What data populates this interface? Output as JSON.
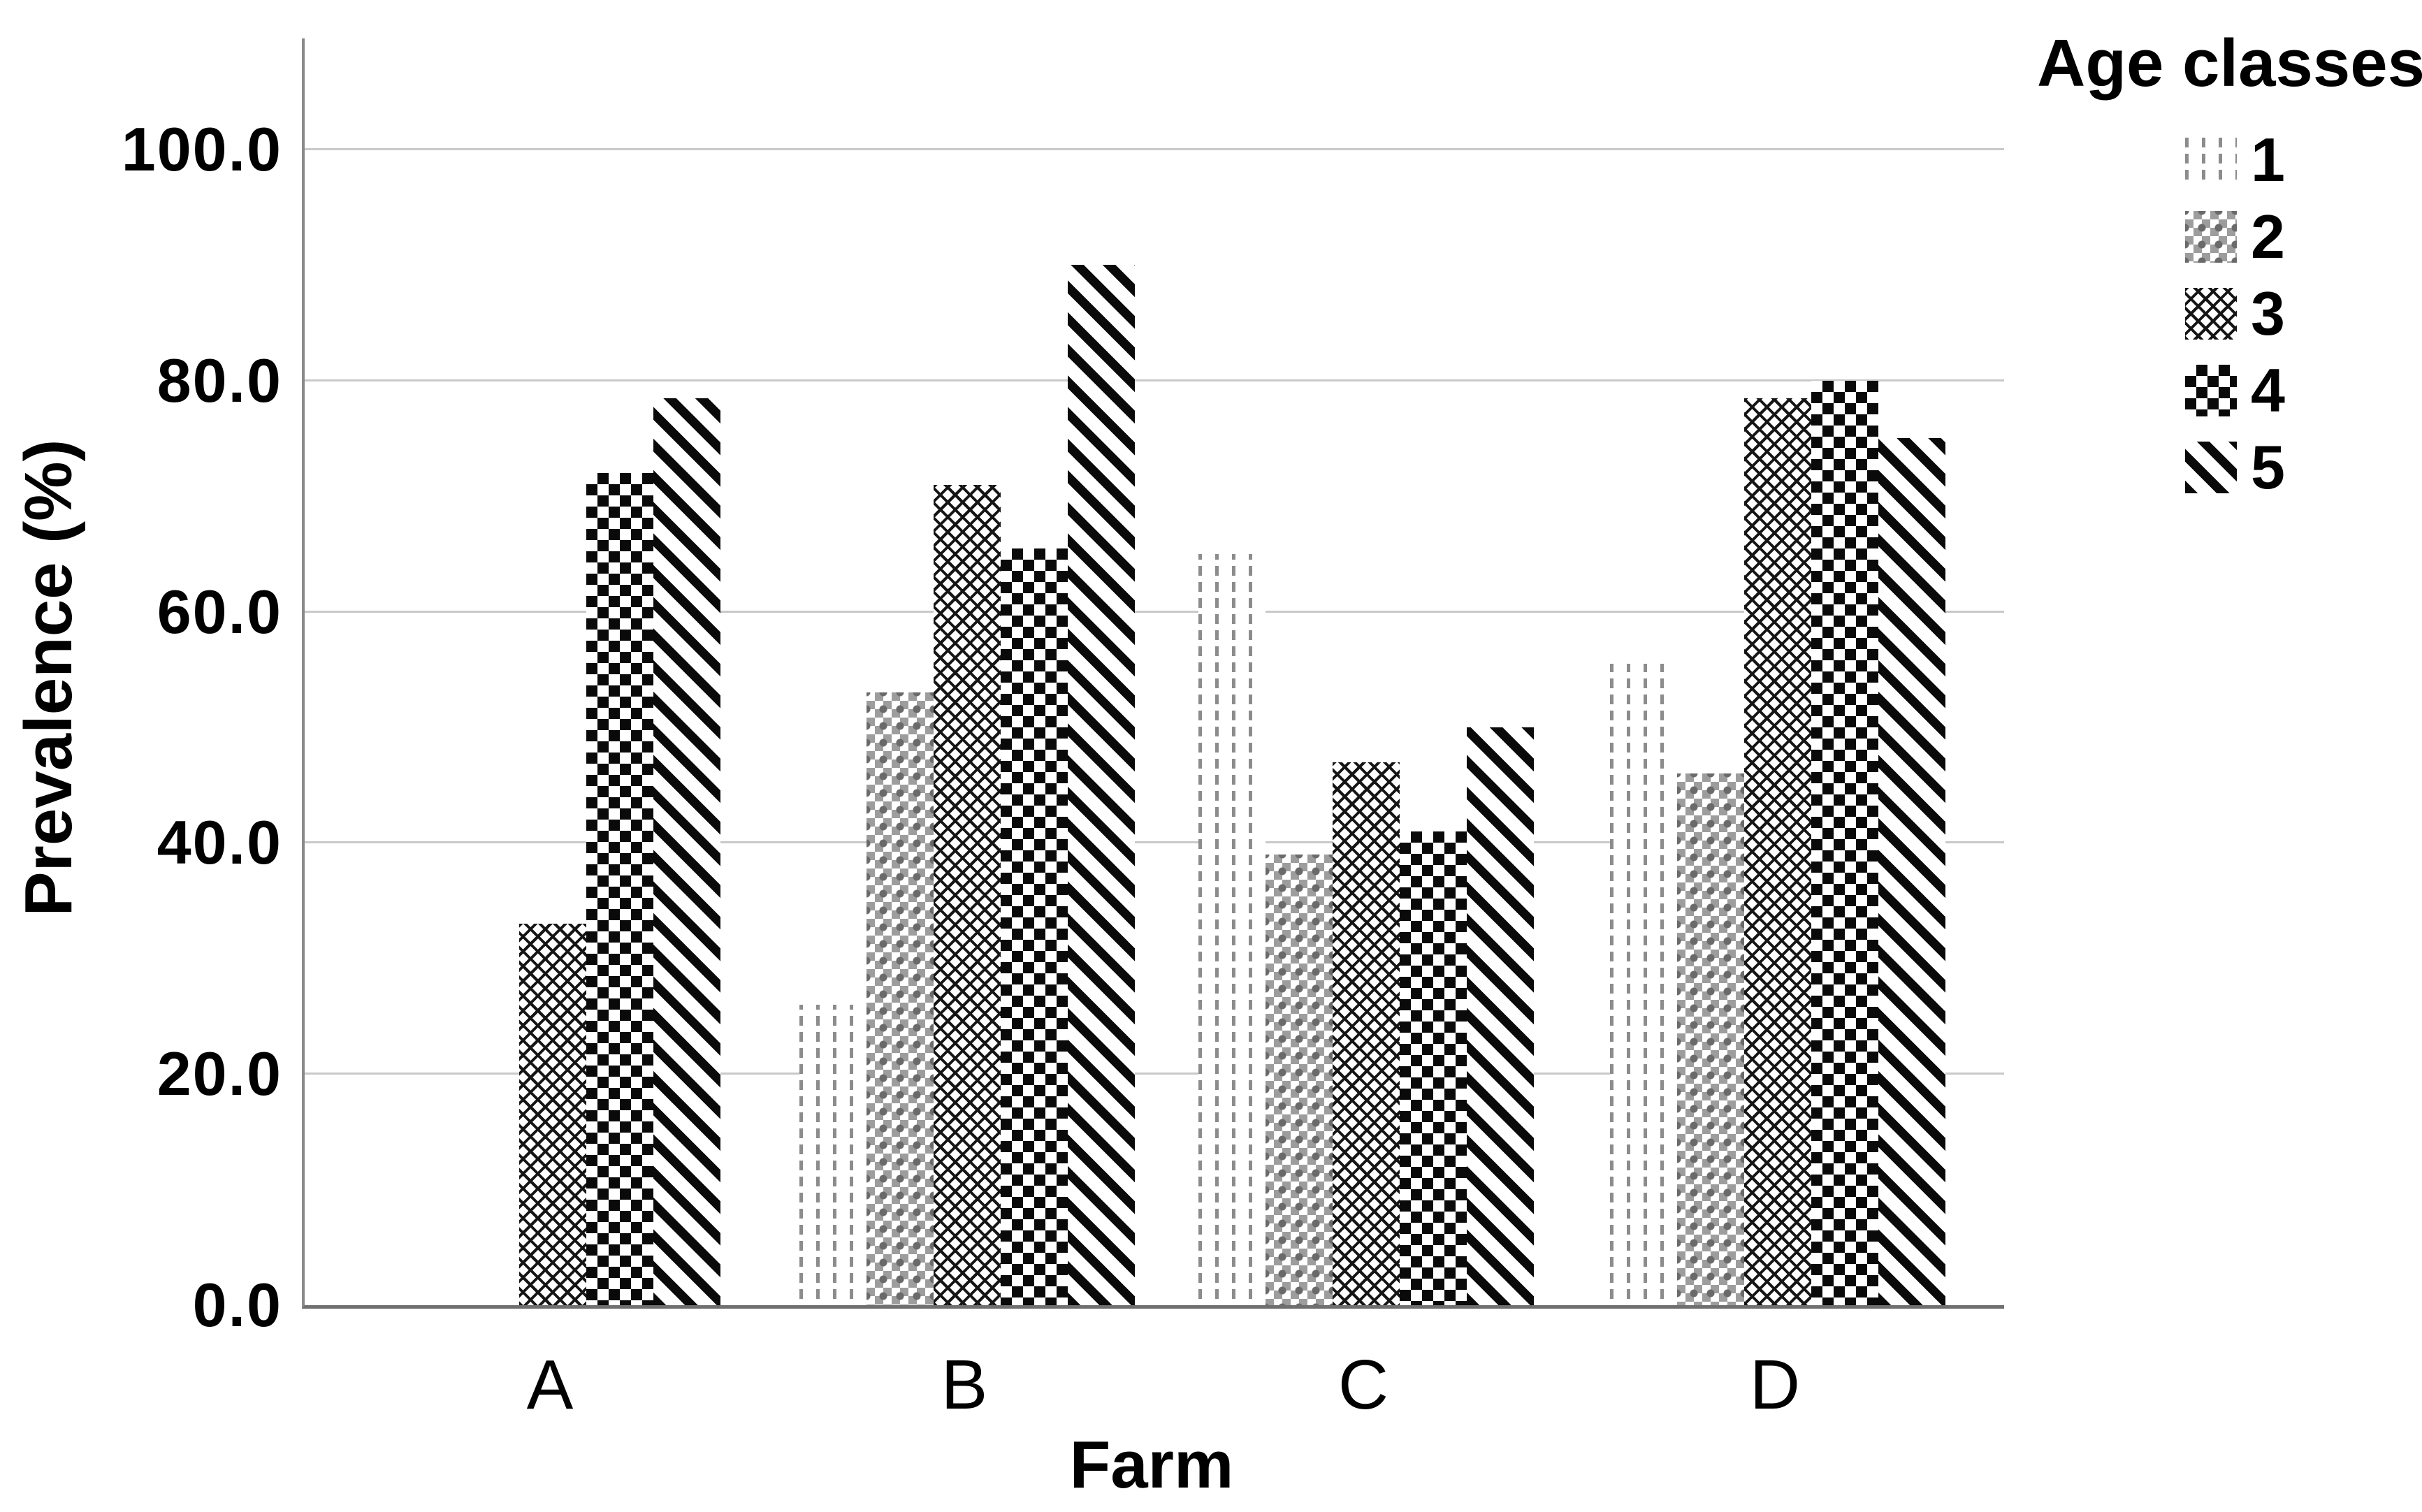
{
  "chart_data": {
    "type": "bar",
    "title": "",
    "xlabel": "Farm",
    "ylabel": "Prevalence (%)",
    "categories": [
      "A",
      "B",
      "C",
      "D"
    ],
    "series": [
      {
        "name": "1",
        "pattern": "vertical-dashed",
        "color": "#8c8c8c",
        "values": [
          0,
          26,
          65,
          55.5
        ]
      },
      {
        "name": "2",
        "pattern": "gray-plus-check",
        "color": "#9d9d9d",
        "values": [
          0,
          53,
          39,
          46
        ]
      },
      {
        "name": "3",
        "pattern": "diagonal-lattice",
        "color": "#151515",
        "values": [
          33,
          71,
          47,
          78.5
        ]
      },
      {
        "name": "4",
        "pattern": "checkerboard",
        "color": "#0a0a0a",
        "values": [
          72,
          65.5,
          41,
          80
        ]
      },
      {
        "name": "5",
        "pattern": "diagonal-stripes",
        "color": "#0a0a0a",
        "values": [
          78.5,
          90,
          50,
          75
        ]
      }
    ],
    "ylim": [
      0,
      109.5
    ],
    "yticks": [
      0,
      20,
      40,
      60,
      80,
      100
    ],
    "ytick_labels": [
      "0.0",
      "20.0",
      "40.0",
      "60.0",
      "80.0",
      "100.0"
    ],
    "legend_title": "Age classes",
    "legend_position": "top-right",
    "grid": "horizontal",
    "gridline_color": "#c9c9c9",
    "axis_color": "#8a8a8a",
    "background": "#ffffff"
  }
}
